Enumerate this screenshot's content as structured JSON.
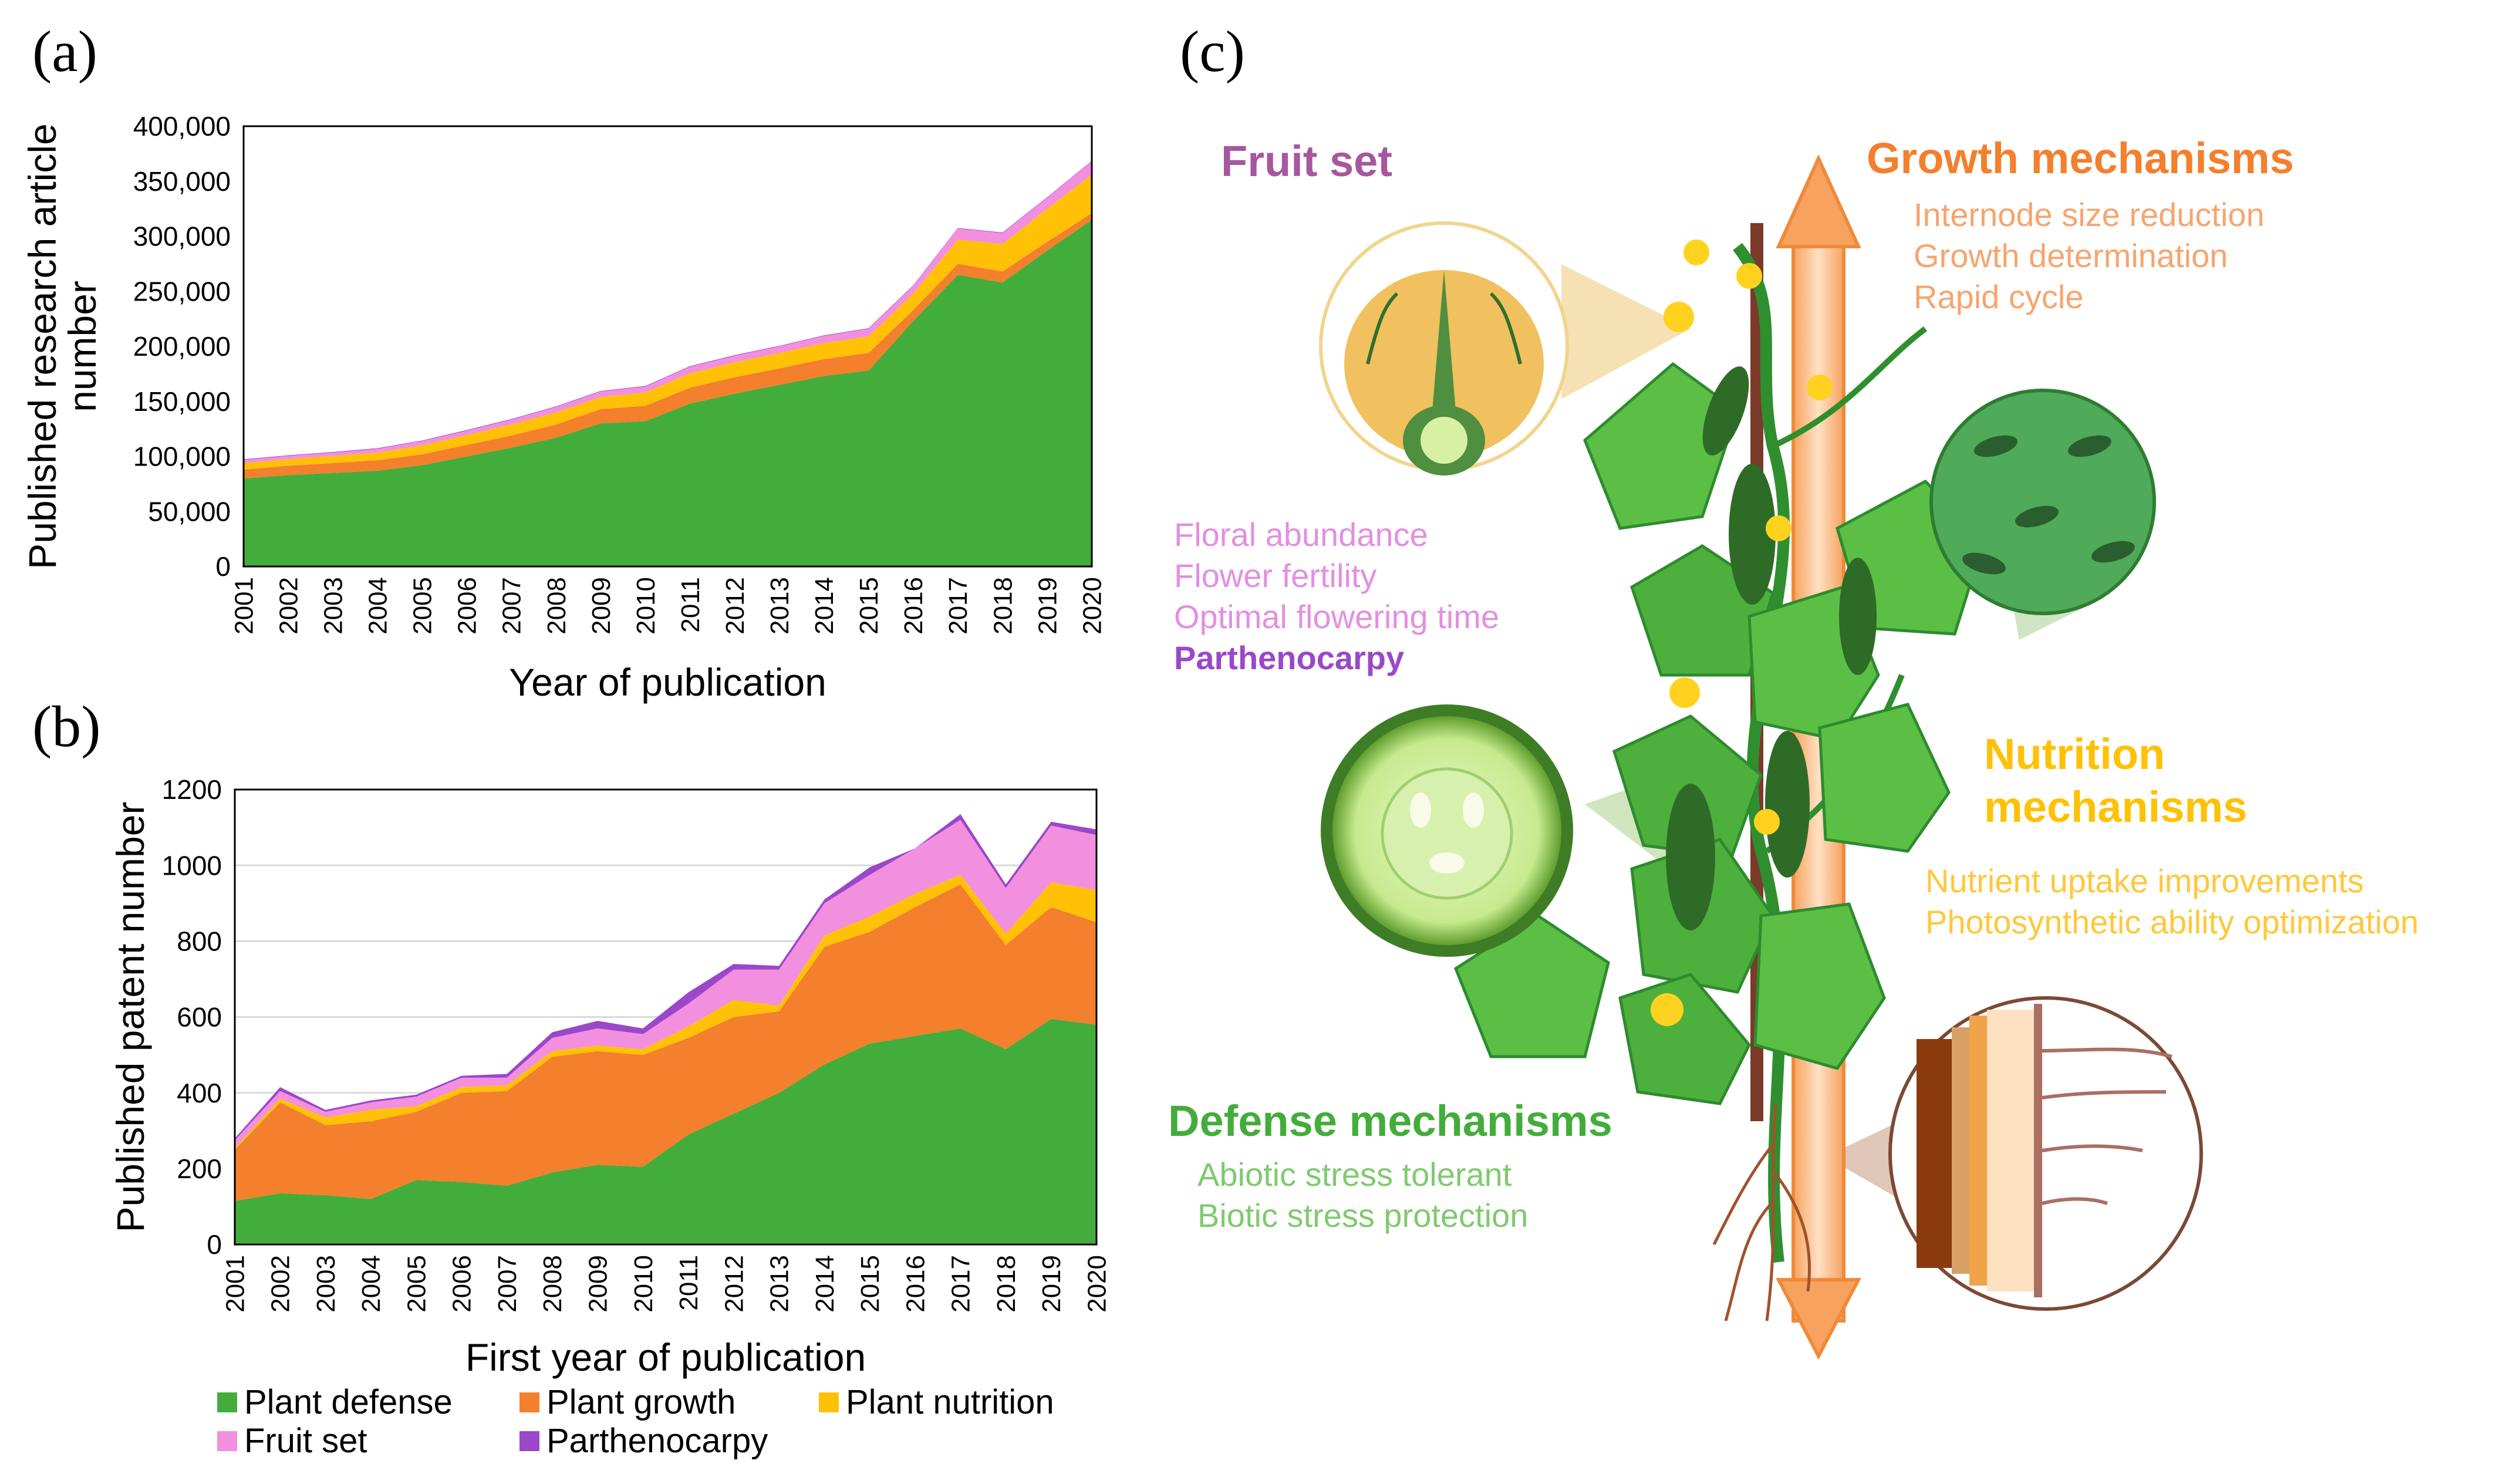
{
  "panels": {
    "a": "(a)",
    "b": "(b)",
    "c": "(c)"
  },
  "colors": {
    "plant_defense": "#43ad3b",
    "plant_growth": "#f47f2c",
    "plant_nutrition": "#ffc106",
    "fruit_set": "#f28fde",
    "parthenocarpy": "#9b47c9"
  },
  "legend": {
    "items": [
      {
        "label": "Plant defense",
        "color": "#43ad3b"
      },
      {
        "label": "Plant growth",
        "color": "#f47f2c"
      },
      {
        "label": "Plant nutrition",
        "color": "#ffc106"
      },
      {
        "label": "Fruit set",
        "color": "#f28fde"
      },
      {
        "label": "Parthenocarpy",
        "color": "#9b47c9"
      }
    ]
  },
  "chart_data": [
    {
      "type": "area",
      "stacked": true,
      "xlabel": "Year of publication",
      "ylabel": "Published  research article number",
      "ylim": [
        0,
        400000
      ],
      "yticks": [
        "0",
        "50,000",
        "100,000",
        "150,000",
        "200,000",
        "250,000",
        "300,000",
        "350,000",
        "400,000"
      ],
      "x": [
        "2001",
        "2002",
        "2003",
        "2004",
        "2005",
        "2006",
        "2007",
        "2008",
        "2009",
        "2010",
        "2011",
        "2012",
        "2013",
        "2014",
        "2015",
        "2016",
        "2017",
        "2018",
        "2019",
        "2020"
      ],
      "series": [
        {
          "name": "Plant defense",
          "values": [
            80000,
            83000,
            85000,
            87000,
            92000,
            100000,
            108000,
            117000,
            130000,
            132000,
            148000,
            157000,
            165000,
            173000,
            178000,
            223000,
            265000,
            258000,
            287000,
            315000
          ]
        },
        {
          "name": "Plant growth",
          "values": [
            8000,
            8500,
            9000,
            9500,
            10000,
            10500,
            11000,
            12000,
            13000,
            14000,
            14500,
            15000,
            15000,
            15500,
            16000,
            10000,
            10000,
            10000,
            8000,
            6000
          ]
        },
        {
          "name": "Plant nutrition",
          "values": [
            6000,
            6000,
            6500,
            7000,
            8000,
            9000,
            10000,
            11000,
            11000,
            12000,
            13000,
            13500,
            14000,
            14500,
            15000,
            15000,
            22000,
            25000,
            30000,
            35000
          ]
        },
        {
          "name": "Fruit set",
          "values": [
            3000,
            3000,
            3000,
            3500,
            4000,
            4000,
            4500,
            5000,
            5000,
            5500,
            6000,
            6000,
            6000,
            6500,
            7000,
            7000,
            10000,
            10000,
            10000,
            12000
          ]
        },
        {
          "name": "Parthenocarpy",
          "values": [
            500,
            500,
            500,
            500,
            500,
            500,
            500,
            500,
            500,
            500,
            500,
            500,
            500,
            500,
            500,
            500,
            500,
            500,
            500,
            500
          ]
        }
      ]
    },
    {
      "type": "area",
      "stacked": true,
      "xlabel": "First year of publication",
      "ylabel": "Published  patent number",
      "ylim": [
        0,
        1200
      ],
      "yticks": [
        "0",
        "200",
        "400",
        "600",
        "800",
        "1000",
        "1200"
      ],
      "x": [
        "2001",
        "2002",
        "2003",
        "2004",
        "2005",
        "2006",
        "2007",
        "2008",
        "2009",
        "2010",
        "2011",
        "2012",
        "2013",
        "2014",
        "2015",
        "2016",
        "2017",
        "2018",
        "2019",
        "2020"
      ],
      "series": [
        {
          "name": "Plant defense",
          "values": [
            115,
            135,
            130,
            120,
            170,
            165,
            155,
            190,
            210,
            205,
            290,
            345,
            400,
            475,
            530,
            550,
            570,
            515,
            595,
            580
          ]
        },
        {
          "name": "Plant growth",
          "values": [
            135,
            240,
            185,
            205,
            180,
            235,
            250,
            305,
            300,
            295,
            255,
            255,
            215,
            310,
            295,
            340,
            380,
            275,
            295,
            270
          ]
        },
        {
          "name": "Plant nutrition",
          "values": [
            5,
            10,
            20,
            30,
            15,
            15,
            15,
            15,
            15,
            15,
            30,
            45,
            15,
            30,
            40,
            35,
            25,
            30,
            65,
            85
          ]
        },
        {
          "name": "Fruit set",
          "values": [
            20,
            20,
            15,
            20,
            25,
            25,
            20,
            35,
            45,
            40,
            60,
            80,
            95,
            85,
            110,
            120,
            145,
            120,
            150,
            145
          ]
        },
        {
          "name": "Parthenocarpy",
          "values": [
            5,
            10,
            5,
            5,
            5,
            5,
            10,
            15,
            20,
            15,
            30,
            15,
            10,
            10,
            20,
            0,
            15,
            10,
            10,
            15
          ]
        }
      ]
    }
  ],
  "diagram": {
    "fruit_set": {
      "title": "Fruit set",
      "items": [
        "Floral abundance",
        "Flower fertility",
        "Optimal flowering time"
      ],
      "highlight": "Parthenocarpy"
    },
    "growth": {
      "title": "Growth mechanisms",
      "items": [
        "Internode size reduction",
        "Growth determination",
        "Rapid cycle"
      ]
    },
    "nutrition": {
      "title_line1": "Nutrition",
      "title_line2": "mechanisms",
      "items": [
        "Nutrient uptake improvements",
        "Photosynthetic ability optimization"
      ]
    },
    "defense": {
      "title": "Defense mechanisms",
      "items": [
        "Abiotic stress tolerant",
        "Biotic stress protection"
      ]
    }
  }
}
